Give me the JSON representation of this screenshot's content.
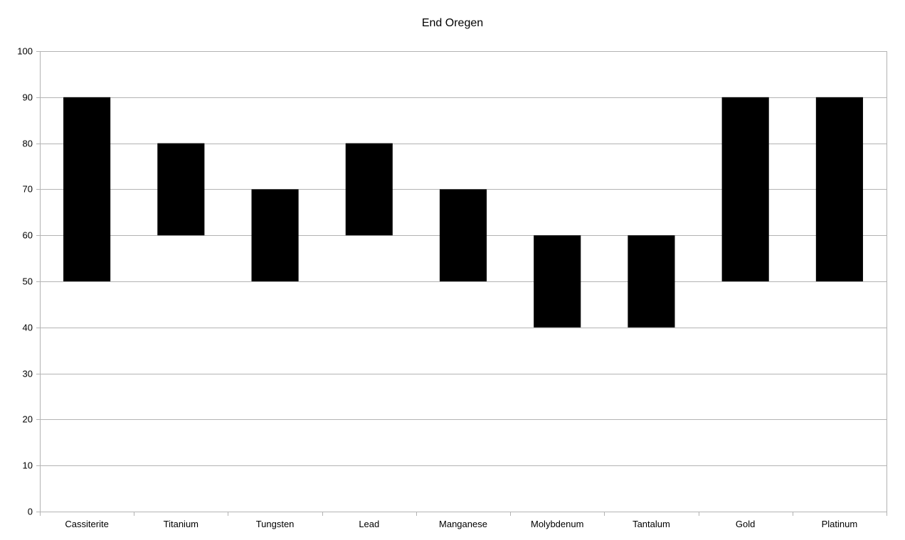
{
  "chart_data": {
    "type": "bar",
    "title": "End Oregen",
    "xlabel": "",
    "ylabel": "",
    "ylim": [
      0,
      100
    ],
    "yticks": [
      0,
      10,
      20,
      30,
      40,
      50,
      60,
      70,
      80,
      90,
      100
    ],
    "grid": true,
    "legend": "none",
    "categories": [
      "Cassiterite",
      "Titanium",
      "Tungsten",
      "Lead",
      "Manganese",
      "Molybdenum",
      "Tantalum",
      "Gold",
      "Platinum"
    ],
    "series": [
      {
        "low": [
          50,
          60,
          50,
          60,
          50,
          40,
          40,
          50,
          50
        ],
        "high": [
          90,
          80,
          70,
          80,
          70,
          60,
          60,
          90,
          90
        ],
        "color": "#000000"
      }
    ]
  }
}
